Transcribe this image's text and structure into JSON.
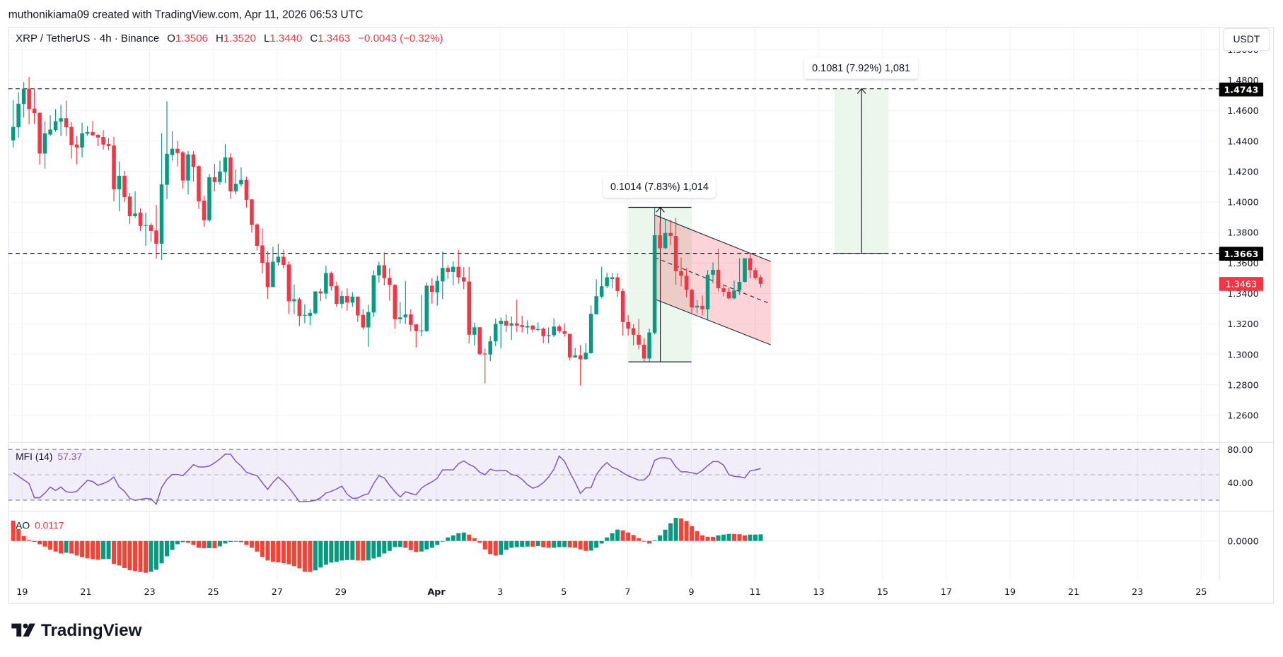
{
  "attribution": "muthonikiama09 created with TradingView.com, Apr 11, 2026 06:53 UTC",
  "legend": {
    "symbol": "XRP / TetherUS · 4h · Binance",
    "o_label": "O",
    "o": "1.3506",
    "h_label": "H",
    "h": "1.3520",
    "l_label": "L",
    "l": "1.3440",
    "c_label": "C",
    "c": "1.3463",
    "change": "−0.0043 (−0.32%)"
  },
  "currency_button": "USDT",
  "badges": {
    "upper_level": "1.4743",
    "lower_level": "1.3663",
    "last_price": "1.3463"
  },
  "measures": [
    {
      "label": "0.1014 (7.83%) 1,014",
      "from": 1.2951,
      "to": 1.3965
    },
    {
      "label": "0.1081 (7.92%) 1,081",
      "from": 1.3663,
      "to": 1.4744
    }
  ],
  "levels": [
    1.4743,
    1.3663
  ],
  "indicators": {
    "mfi": {
      "name": "MFI (14)",
      "value": "57.37",
      "axis": [
        "80.00",
        "40.00"
      ],
      "bands": [
        80,
        50,
        20
      ]
    },
    "ao": {
      "name": "AO",
      "value": "0.0117",
      "axis": [
        "0.0000"
      ]
    }
  },
  "logo_text": "TradingView",
  "colors": {
    "up": "#089981",
    "down": "#f23645",
    "ao_down": "#f44336",
    "mfi": "#7e57c2",
    "measure_fill": "#e8f5e9",
    "channel_fill": "#f23645"
  },
  "chart_data": {
    "type": "candlestick",
    "title": "XRP / TetherUS · 4h · Binance",
    "ylim": [
      1.25,
      1.5
    ],
    "price_ticks": [
      "1.5000",
      "1.4800",
      "1.4600",
      "1.4400",
      "1.4200",
      "1.4000",
      "1.3800",
      "1.3600",
      "1.3400",
      "1.3200",
      "1.3000",
      "1.2800",
      "1.2600"
    ],
    "x_tick_labels": [
      "19",
      "21",
      "23",
      "25",
      "27",
      "29",
      "Apr",
      "3",
      "5",
      "7",
      "9",
      "11",
      "13",
      "15",
      "17",
      "19",
      "21",
      "23",
      "25"
    ],
    "grid": true,
    "ohlc": [
      [
        1.4405,
        1.4668,
        1.4358,
        1.4493
      ],
      [
        1.449,
        1.472,
        1.4423,
        1.4645
      ],
      [
        1.4643,
        1.4786,
        1.4555,
        1.4743
      ],
      [
        1.4743,
        1.482,
        1.451,
        1.461
      ],
      [
        1.4613,
        1.4744,
        1.4513,
        1.4583
      ],
      [
        1.4586,
        1.4586,
        1.4246,
        1.4318
      ],
      [
        1.4318,
        1.4529,
        1.4218,
        1.4451
      ],
      [
        1.4443,
        1.4568,
        1.4433,
        1.4475
      ],
      [
        1.4472,
        1.461,
        1.446,
        1.453
      ],
      [
        1.4527,
        1.4637,
        1.4433,
        1.455
      ],
      [
        1.455,
        1.4665,
        1.4433,
        1.449
      ],
      [
        1.4493,
        1.4526,
        1.4284,
        1.4374
      ],
      [
        1.4377,
        1.4433,
        1.4246,
        1.4358
      ],
      [
        1.4358,
        1.452,
        1.4293,
        1.4451
      ],
      [
        1.4448,
        1.4498,
        1.4435,
        1.4459
      ],
      [
        1.4459,
        1.4532,
        1.4435,
        1.4437
      ],
      [
        1.444,
        1.4446,
        1.4366,
        1.4423
      ],
      [
        1.4426,
        1.447,
        1.4344,
        1.4377
      ],
      [
        1.438,
        1.442,
        1.434,
        1.4367
      ],
      [
        1.4371,
        1.4428,
        1.4004,
        1.4083
      ],
      [
        1.4083,
        1.4265,
        1.3939,
        1.4172
      ],
      [
        1.4172,
        1.4203,
        1.4,
        1.4032
      ],
      [
        1.4036,
        1.406,
        1.3855,
        1.3907
      ],
      [
        1.3907,
        1.407,
        1.3895,
        1.3924
      ],
      [
        1.393,
        1.3958,
        1.381,
        1.3843
      ],
      [
        1.3846,
        1.393,
        1.3712,
        1.3849
      ],
      [
        1.3849,
        1.386,
        1.374,
        1.381
      ],
      [
        1.3813,
        1.3981,
        1.3629,
        1.3726
      ],
      [
        1.3726,
        1.4451,
        1.362,
        1.4116
      ],
      [
        1.4113,
        1.466,
        1.402,
        1.4316
      ],
      [
        1.4308,
        1.4464,
        1.4271,
        1.4349
      ],
      [
        1.4349,
        1.44,
        1.4234,
        1.4321
      ],
      [
        1.4326,
        1.4335,
        1.4088,
        1.4141
      ],
      [
        1.4141,
        1.4335,
        1.405,
        1.4312
      ],
      [
        1.4312,
        1.4335,
        1.4135,
        1.423
      ],
      [
        1.4235,
        1.424,
        1.3955,
        1.4004
      ],
      [
        1.4009,
        1.4042,
        1.3838,
        1.388
      ],
      [
        1.388,
        1.4184,
        1.387,
        1.4163
      ],
      [
        1.4163,
        1.425,
        1.407,
        1.4131
      ],
      [
        1.4131,
        1.4271,
        1.4113,
        1.42
      ],
      [
        1.4197,
        1.4381,
        1.4125,
        1.4293
      ],
      [
        1.4293,
        1.4321,
        1.402,
        1.407
      ],
      [
        1.407,
        1.4214,
        1.405,
        1.412
      ],
      [
        1.4116,
        1.4228,
        1.4102,
        1.4144
      ],
      [
        1.4144,
        1.4166,
        1.3964,
        1.4014
      ],
      [
        1.4017,
        1.402,
        1.38,
        1.385
      ],
      [
        1.3853,
        1.386,
        1.3683,
        1.3712
      ],
      [
        1.3715,
        1.3827,
        1.3531,
        1.3601
      ],
      [
        1.3604,
        1.3678,
        1.3365,
        1.3442
      ],
      [
        1.3442,
        1.3706,
        1.3442,
        1.3608
      ],
      [
        1.3604,
        1.3725,
        1.3582,
        1.3641
      ],
      [
        1.3641,
        1.3688,
        1.3563,
        1.3587
      ],
      [
        1.359,
        1.361,
        1.3265,
        1.3349
      ],
      [
        1.3349,
        1.3458,
        1.3265,
        1.3362
      ],
      [
        1.3362,
        1.3374,
        1.3186,
        1.3252
      ],
      [
        1.3256,
        1.3329,
        1.3205,
        1.3259
      ],
      [
        1.3252,
        1.3297,
        1.3191,
        1.3273
      ],
      [
        1.327,
        1.3415,
        1.3261,
        1.3413
      ],
      [
        1.3413,
        1.3432,
        1.3349,
        1.34
      ],
      [
        1.34,
        1.3582,
        1.3365,
        1.3534
      ],
      [
        1.3534,
        1.3543,
        1.3419,
        1.3447
      ],
      [
        1.345,
        1.3477,
        1.3312,
        1.3331
      ],
      [
        1.3331,
        1.3418,
        1.3303,
        1.3383
      ],
      [
        1.3383,
        1.3432,
        1.3287,
        1.334
      ],
      [
        1.334,
        1.3408,
        1.3312,
        1.3379
      ],
      [
        1.3379,
        1.338,
        1.3214,
        1.3256
      ],
      [
        1.3259,
        1.3297,
        1.3163,
        1.3177
      ],
      [
        1.3177,
        1.3325,
        1.305,
        1.3278
      ],
      [
        1.3275,
        1.3551,
        1.3247,
        1.3519
      ],
      [
        1.3519,
        1.3608,
        1.347,
        1.3585
      ],
      [
        1.3585,
        1.3669,
        1.3452,
        1.35
      ],
      [
        1.3502,
        1.3567,
        1.3352,
        1.3456
      ],
      [
        1.3456,
        1.346,
        1.3169,
        1.3231
      ],
      [
        1.3231,
        1.3343,
        1.3203,
        1.3243
      ],
      [
        1.3243,
        1.3482,
        1.32,
        1.3262
      ],
      [
        1.3262,
        1.3297,
        1.315,
        1.3194
      ],
      [
        1.3197,
        1.32,
        1.3045,
        1.3153
      ],
      [
        1.3153,
        1.339,
        1.312,
        1.3157
      ],
      [
        1.3153,
        1.3472,
        1.3148,
        1.3451
      ],
      [
        1.3451,
        1.3502,
        1.3333,
        1.341
      ],
      [
        1.3407,
        1.3516,
        1.332,
        1.3482
      ],
      [
        1.3479,
        1.3675,
        1.3363,
        1.3567
      ],
      [
        1.3567,
        1.3586,
        1.3496,
        1.3541
      ],
      [
        1.3541,
        1.361,
        1.3453,
        1.3575
      ],
      [
        1.3575,
        1.3685,
        1.3465,
        1.3506
      ],
      [
        1.3506,
        1.3573,
        1.3428,
        1.3478
      ],
      [
        1.3478,
        1.3574,
        1.3073,
        1.3129
      ],
      [
        1.3129,
        1.3209,
        1.3058,
        1.3178
      ],
      [
        1.3178,
        1.318,
        1.2996,
        1.3002
      ],
      [
        1.3006,
        1.3039,
        1.2811,
        1.3
      ],
      [
        1.3,
        1.312,
        1.2957,
        1.3086
      ],
      [
        1.3086,
        1.3235,
        1.3055,
        1.32
      ],
      [
        1.32,
        1.3241,
        1.3039,
        1.322
      ],
      [
        1.322,
        1.3262,
        1.3147,
        1.3189
      ],
      [
        1.3189,
        1.3249,
        1.3096,
        1.3204
      ],
      [
        1.3204,
        1.3359,
        1.3147,
        1.3189
      ],
      [
        1.3192,
        1.3253,
        1.3144,
        1.318
      ],
      [
        1.3177,
        1.3224,
        1.3134,
        1.3186
      ],
      [
        1.3189,
        1.3193,
        1.3144,
        1.3163
      ],
      [
        1.3163,
        1.3209,
        1.3154,
        1.3166
      ],
      [
        1.3169,
        1.3177,
        1.3073,
        1.312
      ],
      [
        1.312,
        1.3177,
        1.3073,
        1.3126
      ],
      [
        1.3126,
        1.3238,
        1.3114,
        1.3183
      ],
      [
        1.3183,
        1.3196,
        1.3138,
        1.3153
      ],
      [
        1.3153,
        1.3202,
        1.3116,
        1.3135
      ],
      [
        1.3135,
        1.3135,
        1.2959,
        1.298
      ],
      [
        1.298,
        1.3042,
        1.2977,
        1.2993
      ],
      [
        1.2993,
        1.3061,
        1.2795,
        1.2968
      ],
      [
        1.2968,
        1.3073,
        1.2965,
        1.3011
      ],
      [
        1.3008,
        1.332,
        1.3004,
        1.3266
      ],
      [
        1.3263,
        1.3493,
        1.3263,
        1.3382
      ],
      [
        1.3379,
        1.3575,
        1.3367,
        1.3447
      ],
      [
        1.3447,
        1.3536,
        1.3434,
        1.3506
      ],
      [
        1.3494,
        1.3532,
        1.3434,
        1.3506
      ],
      [
        1.3506,
        1.3532,
        1.3377,
        1.3416
      ],
      [
        1.3416,
        1.3433,
        1.3124,
        1.3212
      ],
      [
        1.3212,
        1.3259,
        1.3124,
        1.3169
      ],
      [
        1.3172,
        1.3198,
        1.3058,
        1.3129
      ],
      [
        1.3129,
        1.3232,
        1.3033,
        1.3064
      ],
      [
        1.3064,
        1.3107,
        1.2953,
        1.2973
      ],
      [
        1.2973,
        1.3169,
        1.2953,
        1.3144
      ],
      [
        1.3141,
        1.3964,
        1.3132,
        1.3782
      ],
      [
        1.3782,
        1.3867,
        1.3693,
        1.3697
      ],
      [
        1.3697,
        1.389,
        1.3692,
        1.3797
      ],
      [
        1.3797,
        1.3882,
        1.3717,
        1.3777
      ],
      [
        1.3777,
        1.3895,
        1.3458,
        1.3546
      ],
      [
        1.3546,
        1.3635,
        1.3447,
        1.3516
      ],
      [
        1.3516,
        1.3566,
        1.3373,
        1.3424
      ],
      [
        1.3424,
        1.3431,
        1.3272,
        1.3308
      ],
      [
        1.3308,
        1.3356,
        1.3269,
        1.3319
      ],
      [
        1.3319,
        1.3387,
        1.3256,
        1.3296
      ],
      [
        1.3296,
        1.3555,
        1.3223,
        1.3523
      ],
      [
        1.3523,
        1.3604,
        1.3467,
        1.3555
      ],
      [
        1.3555,
        1.3694,
        1.3414,
        1.3434
      ],
      [
        1.3434,
        1.3449,
        1.3381,
        1.3411
      ],
      [
        1.3411,
        1.3437,
        1.3362,
        1.3368
      ],
      [
        1.3368,
        1.3484,
        1.3361,
        1.3419
      ],
      [
        1.3419,
        1.3631,
        1.3391,
        1.3476
      ],
      [
        1.3476,
        1.3631,
        1.3472,
        1.3631
      ],
      [
        1.3631,
        1.3663,
        1.3501,
        1.3553
      ],
      [
        1.3553,
        1.3569,
        1.3491,
        1.3501
      ],
      [
        1.3506,
        1.352,
        1.344,
        1.3463
      ]
    ],
    "mfi": [
      52.4,
      48.2,
      43.9,
      39.7,
      22.8,
      22.8,
      28.4,
      35.5,
      31.3,
      35.5,
      29.9,
      29.0,
      30.4,
      36.9,
      43.4,
      42.0,
      37.5,
      39.7,
      42.5,
      47.3,
      35.5,
      30.4,
      22.0,
      19.7,
      20.8,
      22.0,
      21.4,
      15.2,
      34.9,
      44.5,
      50.4,
      50.4,
      49.0,
      55.2,
      62.0,
      59.2,
      59.2,
      60.3,
      64.2,
      68.7,
      74.4,
      74.4,
      65.9,
      60.3,
      53.0,
      50.7,
      49.0,
      40.6,
      32.7,
      41.1,
      47.3,
      41.7,
      34.9,
      26.5,
      18.0,
      18.3,
      18.6,
      19.7,
      22.8,
      28.4,
      30.4,
      33.2,
      36.6,
      27.0,
      22.0,
      22.5,
      25.6,
      27.6,
      39.7,
      49.0,
      46.2,
      37.7,
      30.0,
      23.7,
      29.9,
      27.9,
      26.2,
      34.1,
      38.3,
      41.7,
      45.9,
      55.8,
      55.8,
      55.8,
      63.1,
      66.5,
      62.3,
      59.4,
      53.0,
      50.1,
      56.6,
      54.6,
      54.9,
      54.9,
      50.4,
      49.0,
      44.5,
      38.3,
      34.1,
      36.1,
      40.6,
      47.3,
      56.6,
      72.1,
      65.9,
      53.0,
      41.1,
      27.9,
      34.6,
      34.6,
      50.1,
      58.6,
      64.5,
      58.6,
      56.6,
      52.4,
      48.7,
      46.2,
      43.7,
      43.9,
      50.1,
      67.0,
      69.9,
      70.1,
      68.7,
      59.4,
      53.5,
      53.5,
      52.4,
      51.0,
      55.2,
      60.8,
      65.6,
      65.6,
      61.4,
      50.1,
      48.2,
      47.6,
      46.2,
      54.6,
      55.8,
      57.37
    ],
    "ao": [
      0.036,
      0.0213,
      0.0088,
      0.0017,
      -0.0017,
      -0.0059,
      -0.01,
      -0.0155,
      -0.0188,
      -0.0222,
      -0.0209,
      -0.0222,
      -0.0259,
      -0.0288,
      -0.0309,
      -0.0322,
      -0.0334,
      -0.0322,
      -0.032,
      -0.041,
      -0.0435,
      -0.048,
      -0.052,
      -0.0535,
      -0.055,
      -0.0564,
      -0.0548,
      -0.051,
      -0.0397,
      -0.0272,
      -0.0159,
      -0.0059,
      -0.0021,
      -0.0033,
      -0.0071,
      -0.0121,
      -0.013,
      -0.0128,
      -0.013,
      -0.0096,
      -0.0046,
      -0.0017,
      -0.0008,
      -0.0021,
      -0.0071,
      -0.0121,
      -0.0188,
      -0.0284,
      -0.0347,
      -0.0372,
      -0.038,
      -0.0393,
      -0.0414,
      -0.0447,
      -0.0485,
      -0.0548,
      -0.055,
      -0.0522,
      -0.0472,
      -0.0422,
      -0.0385,
      -0.0372,
      -0.0347,
      -0.0339,
      -0.0338,
      -0.0347,
      -0.0349,
      -0.0345,
      -0.031,
      -0.0284,
      -0.0222,
      -0.0176,
      -0.0109,
      -0.0108,
      -0.0121,
      -0.0163,
      -0.0196,
      -0.0188,
      -0.015,
      -0.0121,
      -0.0071,
      -0.0008,
      0.0063,
      0.01,
      0.0138,
      0.015,
      0.0113,
      0.005,
      -0.0033,
      -0.015,
      -0.0234,
      -0.0259,
      -0.0247,
      -0.0159,
      -0.0121,
      -0.0109,
      -0.0105,
      -0.01,
      -0.0101,
      -0.0092,
      -0.0109,
      -0.0121,
      -0.012,
      -0.0109,
      -0.0108,
      -0.0113,
      -0.0121,
      -0.015,
      -0.0176,
      -0.0171,
      -0.0121,
      -0.0046,
      0.0063,
      0.0138,
      0.0201,
      0.0188,
      0.015,
      0.0105,
      0.005,
      0.0,
      -0.0046,
      0.0013,
      0.01,
      0.0201,
      0.0314,
      0.041,
      0.0401,
      0.0355,
      0.0263,
      0.0176,
      0.01,
      0.0075,
      0.0074,
      0.01,
      0.0113,
      0.0125,
      0.0124,
      0.012,
      0.01,
      0.0113,
      0.0114,
      0.0117
    ]
  }
}
